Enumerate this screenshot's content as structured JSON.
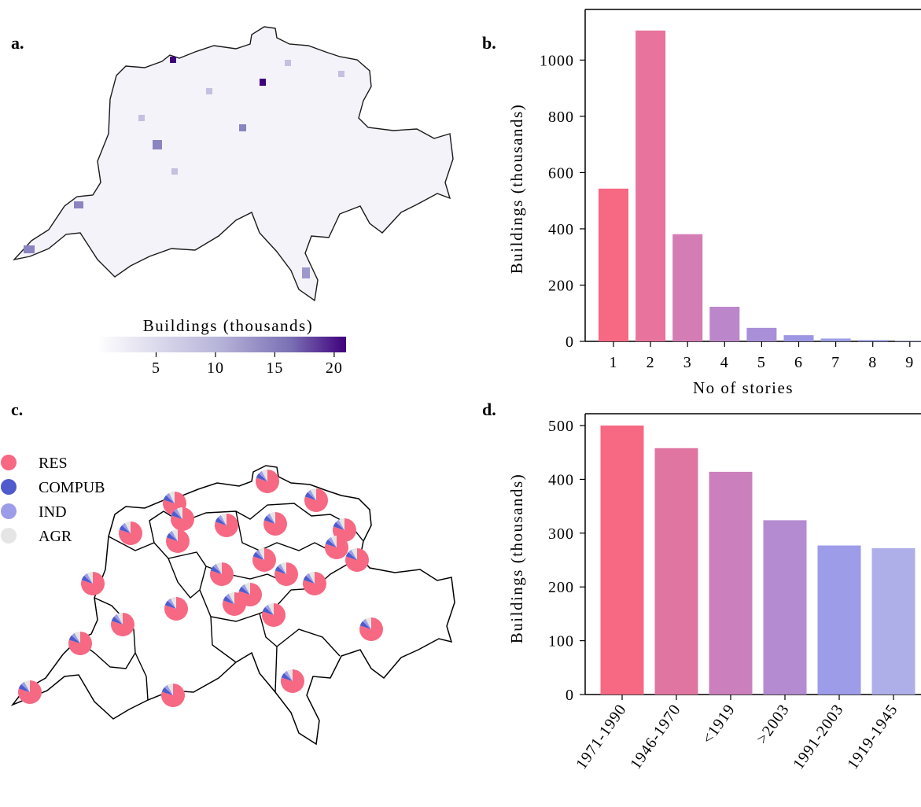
{
  "panels": {
    "a": "a.",
    "b": "b.",
    "c": "c.",
    "d": "d."
  },
  "panel_a": {
    "colorbar_label": "Buildings (thousands)",
    "colorbar_ticks": [
      "5",
      "10",
      "15",
      "20"
    ],
    "colorbar_tick_values": [
      5,
      10,
      15,
      20
    ],
    "colorbar_range": [
      0,
      21
    ],
    "colormap_colors": [
      "#ffffff",
      "#8a84c0",
      "#3f007d"
    ]
  },
  "panel_c": {
    "legend": [
      {
        "label": "RES",
        "color": "#f76883"
      },
      {
        "label": "COMPUB",
        "color": "#4f5bcc"
      },
      {
        "label": "IND",
        "color": "#9b9de8"
      },
      {
        "label": "AGR",
        "color": "#e5e5e5"
      }
    ]
  },
  "chart_data": [
    {
      "panel": "b",
      "type": "bar",
      "title": "",
      "xlabel": "No of stories",
      "ylabel": "Buildings (thousands)",
      "categories": [
        "1",
        "2",
        "3",
        "4",
        "5",
        "6",
        "7",
        "8",
        "9"
      ],
      "values": [
        543,
        1105,
        381,
        123,
        48,
        22,
        10,
        5,
        2
      ],
      "ylim": [
        0,
        1180
      ],
      "yticks": [
        0,
        200,
        400,
        600,
        800,
        1000
      ],
      "colors": [
        "#f76883",
        "#e8739c",
        "#d47db4",
        "#bb87ca",
        "#a88fd8",
        "#9d96e3",
        "#9c9de6",
        "#a2a4e6",
        "#a8a9e6"
      ],
      "grid": false
    },
    {
      "panel": "d",
      "type": "bar",
      "title": "",
      "xlabel": "",
      "ylabel": "Buildings (thousands)",
      "categories": [
        "1971-1990",
        "1946-1970",
        "<1919",
        ">2003",
        "1991-2003",
        "1919-1945"
      ],
      "values": [
        500,
        458,
        414,
        324,
        277,
        272
      ],
      "ylim": [
        0,
        522
      ],
      "yticks": [
        0,
        100,
        200,
        300,
        400,
        500
      ],
      "colors": [
        "#f76883",
        "#e075a1",
        "#cb7fbc",
        "#b48bd1",
        "#9c9ce8",
        "#aeafe8"
      ],
      "grid": false
    }
  ]
}
